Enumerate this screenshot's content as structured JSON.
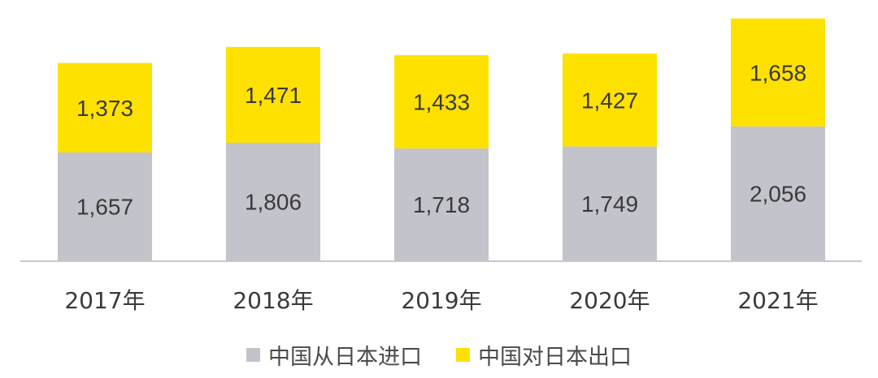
{
  "chart_data": {
    "type": "bar",
    "stacked": true,
    "categories": [
      "2017年",
      "2018年",
      "2019年",
      "2020年",
      "2021年"
    ],
    "series": [
      {
        "name": "中国从日本进口",
        "color": "#c3c3cb",
        "values": [
          1657,
          1806,
          1718,
          1749,
          2056
        ]
      },
      {
        "name": "中国对日本出口",
        "color": "#ffe100",
        "values": [
          1373,
          1471,
          1433,
          1427,
          1658
        ]
      }
    ],
    "value_labels": [
      [
        "1,657",
        "1,806",
        "1,718",
        "1,749",
        "2,056"
      ],
      [
        "1,373",
        "1,471",
        "1,433",
        "1,427",
        "1,658"
      ]
    ],
    "title": "",
    "xlabel": "",
    "ylabel": "",
    "ylim": [
      0,
      3800
    ],
    "grid": false,
    "legend": "bottom-center"
  }
}
